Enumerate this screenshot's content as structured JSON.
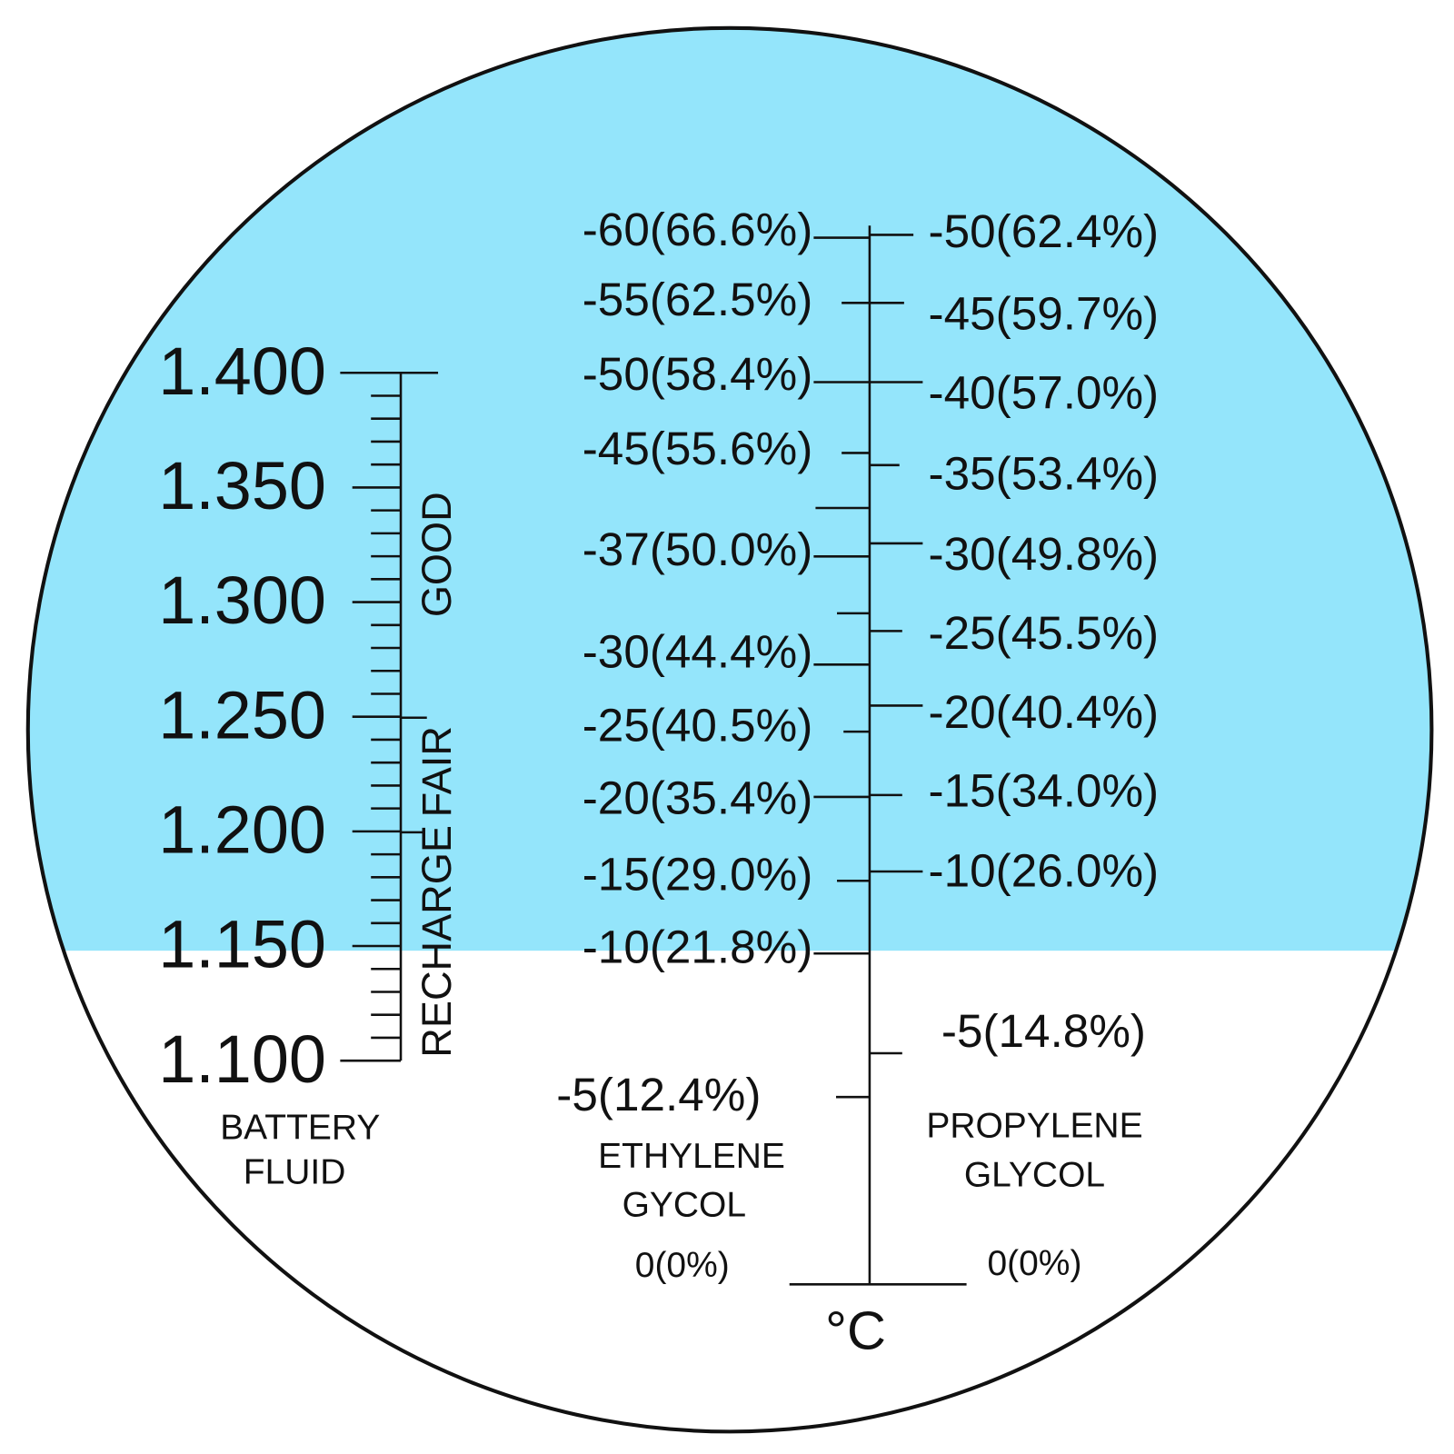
{
  "battery_fluid": {
    "scale_labels": [
      "1.400",
      "1.350",
      "1.300",
      "1.250",
      "1.200",
      "1.150",
      "1.100"
    ],
    "zones": [
      "GOOD",
      "FAIR",
      "RECHARGE"
    ],
    "caption": [
      "BATTERY",
      "FLUID"
    ]
  },
  "ethylene_glycol": {
    "scale_labels": [
      "-60(66.6%)",
      "-55(62.5%)",
      "-50(58.4%)",
      "-45(55.6%)",
      "-37(50.0%)",
      "-30(44.4%)",
      "-25(40.5%)",
      "-20(35.4%)",
      "-15(29.0%)",
      "-10(21.8%)",
      "-5(12.4%)"
    ],
    "caption": [
      "ETHYLENE",
      "GYCOL"
    ],
    "zero_label": "0(0%)"
  },
  "propylene_glycol": {
    "scale_labels": [
      "-50(62.4%)",
      "-45(59.7%)",
      "-40(57.0%)",
      "-35(53.4%)",
      "-30(49.8%)",
      "-25(45.5%)",
      "-20(40.4%)",
      "-15(34.0%)",
      "-10(26.0%)",
      "-5(14.8%)"
    ],
    "caption": [
      "PROPYLENE",
      "GLYCOL"
    ],
    "zero_label": "0(0%)"
  },
  "unit": "°C"
}
